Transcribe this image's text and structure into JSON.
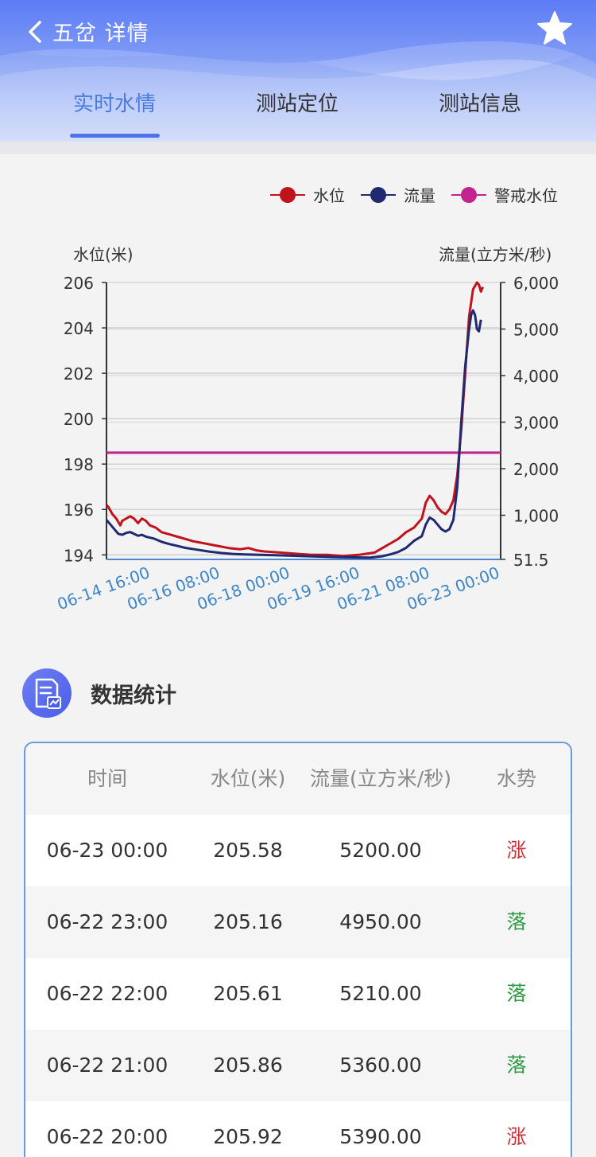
{
  "header": {
    "title": "五岔 详情",
    "tabs": [
      {
        "label": "实时水情",
        "active": true
      },
      {
        "label": "测站定位",
        "active": false
      },
      {
        "label": "测站信息",
        "active": false
      }
    ]
  },
  "chart_data": {
    "type": "line",
    "legend": [
      {
        "name": "水位",
        "color": "#c0131c"
      },
      {
        "name": "流量",
        "color": "#1f2a70"
      },
      {
        "name": "警戒水位",
        "color": "#c2238f"
      }
    ],
    "y_left_label": "水位(米)",
    "y_right_label": "流量(立方米/秒)",
    "y_left_ticks": [
      "206",
      "204",
      "202",
      "200",
      "198",
      "196",
      "194"
    ],
    "y_right_ticks": [
      "6,000",
      "5,000",
      "4,000",
      "3,000",
      "2,000",
      "1,000",
      "51.5"
    ],
    "y_left_range": [
      193.8,
      206
    ],
    "y_right_range": [
      51.5,
      6000
    ],
    "x_ticks": [
      "06-14 16:00",
      "06-16 08:00",
      "06-18 00:00",
      "06-19 16:00",
      "06-21 08:00",
      "06-23 00:00"
    ],
    "x_range_hours": [
      0,
      200
    ],
    "warning_level": 198.5,
    "series": [
      {
        "name": "水位",
        "color": "#c0131c",
        "points": [
          [
            0,
            196.2
          ],
          [
            1,
            196.1
          ],
          [
            3,
            195.8
          ],
          [
            5,
            195.6
          ],
          [
            7,
            195.3
          ],
          [
            8,
            195.5
          ],
          [
            10,
            195.6
          ],
          [
            12,
            195.7
          ],
          [
            14,
            195.6
          ],
          [
            16,
            195.4
          ],
          [
            18,
            195.6
          ],
          [
            20,
            195.5
          ],
          [
            22,
            195.3
          ],
          [
            25,
            195.2
          ],
          [
            28,
            195.0
          ],
          [
            32,
            194.9
          ],
          [
            36,
            194.8
          ],
          [
            40,
            194.7
          ],
          [
            44,
            194.6
          ],
          [
            50,
            194.5
          ],
          [
            56,
            194.4
          ],
          [
            62,
            194.3
          ],
          [
            68,
            194.25
          ],
          [
            72,
            194.3
          ],
          [
            76,
            194.2
          ],
          [
            80,
            194.15
          ],
          [
            88,
            194.1
          ],
          [
            96,
            194.05
          ],
          [
            104,
            194.0
          ],
          [
            112,
            194.0
          ],
          [
            120,
            193.95
          ],
          [
            128,
            194.0
          ],
          [
            136,
            194.1
          ],
          [
            140,
            194.3
          ],
          [
            144,
            194.5
          ],
          [
            148,
            194.7
          ],
          [
            152,
            195.0
          ],
          [
            156,
            195.2
          ],
          [
            160,
            195.6
          ],
          [
            162,
            196.3
          ],
          [
            164,
            196.6
          ],
          [
            166,
            196.4
          ],
          [
            168,
            196.1
          ],
          [
            170,
            195.9
          ],
          [
            172,
            195.8
          ],
          [
            174,
            196.0
          ],
          [
            176,
            196.4
          ],
          [
            178,
            197.5
          ],
          [
            180,
            199.5
          ],
          [
            182,
            202.0
          ],
          [
            184,
            204.5
          ],
          [
            186,
            205.7
          ],
          [
            188,
            206.0
          ],
          [
            189,
            205.9
          ],
          [
            190,
            205.6
          ],
          [
            191,
            205.8
          ]
        ]
      },
      {
        "name": "流量",
        "color": "#1f2a70",
        "points": [
          [
            0,
            900
          ],
          [
            2,
            800
          ],
          [
            4,
            700
          ],
          [
            6,
            600
          ],
          [
            8,
            580
          ],
          [
            10,
            620
          ],
          [
            12,
            640
          ],
          [
            14,
            600
          ],
          [
            16,
            560
          ],
          [
            18,
            580
          ],
          [
            20,
            540
          ],
          [
            24,
            500
          ],
          [
            28,
            430
          ],
          [
            32,
            380
          ],
          [
            36,
            340
          ],
          [
            40,
            300
          ],
          [
            46,
            260
          ],
          [
            52,
            220
          ],
          [
            58,
            190
          ],
          [
            64,
            170
          ],
          [
            70,
            160
          ],
          [
            78,
            150
          ],
          [
            86,
            140
          ],
          [
            94,
            130
          ],
          [
            102,
            120
          ],
          [
            110,
            110
          ],
          [
            118,
            100
          ],
          [
            126,
            95
          ],
          [
            134,
            90
          ],
          [
            140,
            120
          ],
          [
            144,
            160
          ],
          [
            148,
            210
          ],
          [
            152,
            300
          ],
          [
            156,
            450
          ],
          [
            160,
            550
          ],
          [
            162,
            800
          ],
          [
            164,
            950
          ],
          [
            166,
            900
          ],
          [
            168,
            800
          ],
          [
            170,
            700
          ],
          [
            172,
            650
          ],
          [
            174,
            700
          ],
          [
            176,
            900
          ],
          [
            178,
            1600
          ],
          [
            180,
            3000
          ],
          [
            182,
            4200
          ],
          [
            184,
            5000
          ],
          [
            185,
            5300
          ],
          [
            186,
            5400
          ],
          [
            187,
            5300
          ],
          [
            188,
            5000
          ],
          [
            189,
            4950
          ],
          [
            190,
            5200
          ]
        ]
      }
    ]
  },
  "stats": {
    "title": "数据统计",
    "columns": [
      "时间",
      "水位(米)",
      "流量(立方米/秒)",
      "水势"
    ],
    "rows": [
      {
        "time": "06-23 00:00",
        "level": "205.58",
        "flow": "5200.00",
        "trend": "涨",
        "trend_color": "#c6343a"
      },
      {
        "time": "06-22 23:00",
        "level": "205.16",
        "flow": "4950.00",
        "trend": "落",
        "trend_color": "#2e9a44"
      },
      {
        "time": "06-22 22:00",
        "level": "205.61",
        "flow": "5210.00",
        "trend": "落",
        "trend_color": "#2e9a44"
      },
      {
        "time": "06-22 21:00",
        "level": "205.86",
        "flow": "5360.00",
        "trend": "落",
        "trend_color": "#2e9a44"
      },
      {
        "time": "06-22 20:00",
        "level": "205.92",
        "flow": "5390.00",
        "trend": "涨",
        "trend_color": "#c6343a"
      }
    ]
  }
}
